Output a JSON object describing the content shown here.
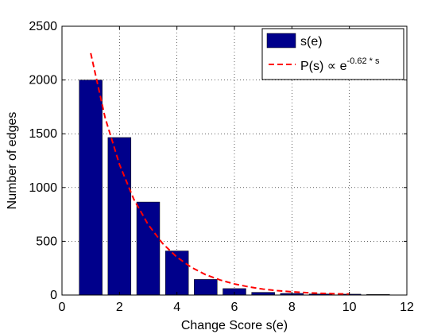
{
  "chart_data": {
    "type": "bar",
    "title": "",
    "xlabel": "Change Score s(e)",
    "ylabel": "Number of edges",
    "xlim": [
      0,
      12
    ],
    "ylim": [
      0,
      2500
    ],
    "xticks": [
      0,
      2,
      4,
      6,
      8,
      10,
      12
    ],
    "yticks": [
      0,
      500,
      1000,
      1500,
      2000,
      2500
    ],
    "grid": true,
    "legend_position": "top-right",
    "bar_series": {
      "name": "s(e)",
      "color": "#00008b",
      "x": [
        1,
        2,
        3,
        4,
        5,
        6,
        7,
        8,
        9,
        10,
        11
      ],
      "values": [
        2000,
        1465,
        865,
        410,
        145,
        60,
        25,
        15,
        10,
        8,
        5
      ]
    },
    "fit_series": {
      "name_main": "P(s) ∝ e",
      "name_exp": "-0.62 * s",
      "color": "#ff0000",
      "style": "dashed",
      "x": [
        1,
        1.5,
        2,
        2.5,
        3,
        3.5,
        4,
        4.5,
        5,
        5.5,
        6,
        6.5,
        7,
        7.5,
        8,
        8.5,
        9,
        9.5,
        10
      ],
      "values": [
        2250,
        1650,
        1215,
        890,
        655,
        480,
        352,
        258,
        189,
        140,
        103,
        76,
        55,
        41,
        30,
        22,
        16,
        12,
        9
      ]
    }
  }
}
